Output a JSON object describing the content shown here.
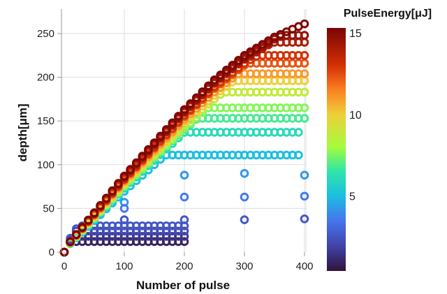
{
  "chart_data": {
    "type": "scatter",
    "xlabel": "Number of pulse",
    "ylabel": "depth[μm]",
    "xlim": [
      -5,
      405
    ],
    "ylim": [
      -3,
      275
    ],
    "xticks": [
      "0",
      "100",
      "200",
      "300",
      "400"
    ],
    "yticks": [
      "0",
      "50",
      "100",
      "150",
      "200",
      "250"
    ],
    "grid": true,
    "colorbar": {
      "title": "PulseEnergy[μJ]",
      "range": [
        0.4,
        15.3
      ],
      "ticks": [
        "5",
        "10",
        "15"
      ],
      "stops": [
        [
          0.4,
          "#30123b"
        ],
        [
          2,
          "#4145ab"
        ],
        [
          3.5,
          "#4675ed"
        ],
        [
          5,
          "#1bbfe0"
        ],
        [
          6.5,
          "#2ee6a8"
        ],
        [
          8,
          "#a4fc3c"
        ],
        [
          10,
          "#eecf3a"
        ],
        [
          11.5,
          "#fb8022"
        ],
        [
          13,
          "#d23105"
        ],
        [
          15.3,
          "#7a0403"
        ]
      ]
    },
    "envelope": {
      "x": [
        0,
        10,
        50,
        100,
        150,
        200,
        250,
        300,
        350,
        400
      ],
      "y": [
        0,
        12,
        45,
        87,
        125,
        163,
        197,
        225,
        246,
        261
      ]
    },
    "series": [
      {
        "energy": 15.2,
        "k": 1.0,
        "plateau": 261,
        "xmax": 400
      },
      {
        "energy": 14.6,
        "k": 0.99,
        "plateau": 248,
        "xmax": 400
      },
      {
        "energy": 14.0,
        "k": 0.98,
        "plateau": 240,
        "xmax": 400
      },
      {
        "energy": 13.0,
        "k": 0.96,
        "plateau": 225,
        "xmax": 400
      },
      {
        "energy": 12.3,
        "k": 0.95,
        "plateau": 216,
        "xmax": 400
      },
      {
        "energy": 11.0,
        "k": 0.93,
        "plateau": 204,
        "xmax": 400
      },
      {
        "energy": 10.0,
        "k": 0.91,
        "plateau": 196,
        "xmax": 400
      },
      {
        "energy": 8.8,
        "k": 0.89,
        "plateau": 183,
        "xmax": 400
      },
      {
        "energy": 7.6,
        "k": 0.87,
        "plateau": 165,
        "xmax": 400
      },
      {
        "energy": 6.8,
        "k": 0.86,
        "plateau": 153,
        "xmax": 400
      },
      {
        "energy": 6.0,
        "k": 0.84,
        "plateau": 137,
        "xmax": 390
      },
      {
        "energy": 5.0,
        "k": 0.8,
        "plateau": 111,
        "xmax": 390
      },
      {
        "energy": 2.6,
        "k": 0.6,
        "plateau": 30,
        "xmax": 200
      },
      {
        "energy": 2.1,
        "k": 0.55,
        "plateau": 24,
        "xmax": 200
      },
      {
        "energy": 1.5,
        "k": 0.5,
        "plateau": 18,
        "xmax": 200
      },
      {
        "energy": 0.9,
        "k": 0.45,
        "plateau": 12,
        "xmax": 200
      }
    ],
    "sparse_points": [
      {
        "x": 100,
        "y": 57,
        "energy": 4.2
      },
      {
        "x": 100,
        "y": 50,
        "energy": 3.6
      },
      {
        "x": 100,
        "y": 37,
        "energy": 2.6
      },
      {
        "x": 200,
        "y": 88,
        "energy": 4.2
      },
      {
        "x": 200,
        "y": 63,
        "energy": 3.6
      },
      {
        "x": 200,
        "y": 37,
        "energy": 2.6
      },
      {
        "x": 300,
        "y": 90,
        "energy": 4.2
      },
      {
        "x": 300,
        "y": 63,
        "energy": 3.6
      },
      {
        "x": 300,
        "y": 37,
        "energy": 2.6
      },
      {
        "x": 400,
        "y": 88,
        "energy": 4.2
      },
      {
        "x": 400,
        "y": 64,
        "energy": 3.6
      },
      {
        "x": 400,
        "y": 38,
        "energy": 2.6
      }
    ]
  }
}
